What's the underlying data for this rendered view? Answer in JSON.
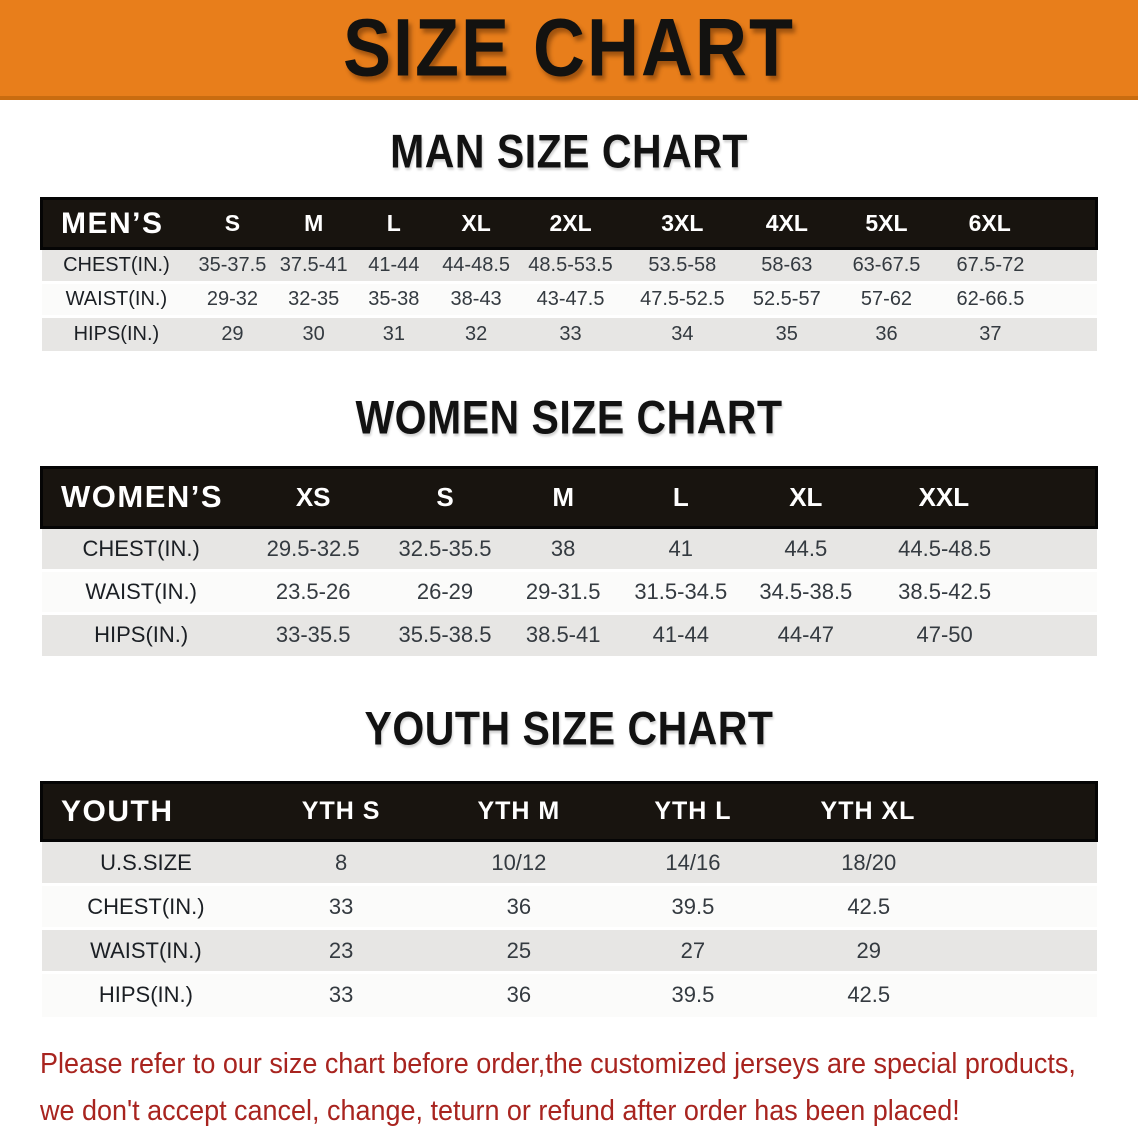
{
  "banner": {
    "title": "SIZE CHART"
  },
  "sections": {
    "men": {
      "heading": "MAN SIZE CHART"
    },
    "women": {
      "heading": "WOMEN SIZE CHART"
    },
    "youth": {
      "heading": "YOUTH SIZE CHART"
    }
  },
  "tables": {
    "men": {
      "header_label": "MEN’S",
      "columns": [
        "S",
        "M",
        "L",
        "XL",
        "2XL",
        "3XL",
        "4XL",
        "5XL",
        "6XL"
      ],
      "rows": [
        {
          "label": "CHEST(IN.)",
          "values": [
            "35-37.5",
            "37.5-41",
            "41-44",
            "44-48.5",
            "48.5-53.5",
            "53.5-58",
            "58-63",
            "63-67.5",
            "67.5-72"
          ]
        },
        {
          "label": "WAIST(IN.)",
          "values": [
            "29-32",
            "32-35",
            "35-38",
            "38-43",
            "43-47.5",
            "47.5-52.5",
            "52.5-57",
            "57-62",
            "62-66.5"
          ]
        },
        {
          "label": "HIPS(IN.)",
          "values": [
            "29",
            "30",
            "31",
            "32",
            "33",
            "34",
            "35",
            "36",
            "37"
          ]
        }
      ]
    },
    "women": {
      "header_label": "WOMEN’S",
      "columns": [
        "XS",
        "S",
        "M",
        "L",
        "XL",
        "XXL"
      ],
      "rows": [
        {
          "label": "CHEST(IN.)",
          "values": [
            "29.5-32.5",
            "32.5-35.5",
            "38",
            "41",
            "44.5",
            "44.5-48.5"
          ]
        },
        {
          "label": "WAIST(IN.)",
          "values": [
            "23.5-26",
            "26-29",
            "29-31.5",
            "31.5-34.5",
            "34.5-38.5",
            "38.5-42.5"
          ]
        },
        {
          "label": "HIPS(IN.)",
          "values": [
            "33-35.5",
            "35.5-38.5",
            "38.5-41",
            "41-44",
            "44-47",
            "47-50"
          ]
        }
      ]
    },
    "youth": {
      "header_label": "YOUTH",
      "columns": [
        "YTH S",
        "YTH M",
        "YTH L",
        "YTH XL"
      ],
      "rows": [
        {
          "label": "U.S.SIZE",
          "values": [
            "8",
            "10/12",
            "14/16",
            "18/20"
          ]
        },
        {
          "label": "CHEST(IN.)",
          "values": [
            "33",
            "36",
            "39.5",
            "42.5"
          ]
        },
        {
          "label": "WAIST(IN.)",
          "values": [
            "23",
            "25",
            "27",
            "29"
          ]
        },
        {
          "label": "HIPS(IN.)",
          "values": [
            "33",
            "36",
            "39.5",
            "42.5"
          ]
        }
      ]
    }
  },
  "footer": {
    "line1": "Please refer to our size chart before order,the customized jerseys are special products,",
    "line2": "we don't accept cancel, change, teturn or refund after order has been placed!"
  },
  "colors": {
    "banner_orange": "#e87e1b",
    "header_black": "#18140f",
    "row_gray": "#e7e6e4",
    "note_red": "#a8241f"
  }
}
